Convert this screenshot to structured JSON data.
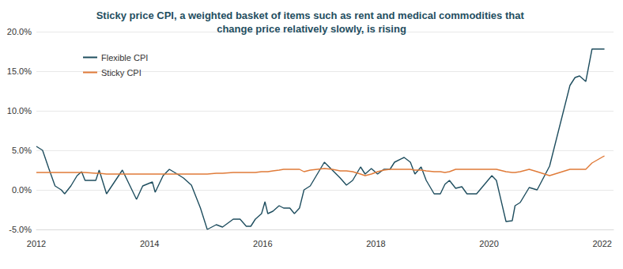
{
  "chart_data": {
    "type": "line",
    "title": "Sticky price CPI, a weighted basket of items such as rent and medical commodities that change price relatively slowly, is rising",
    "x": [
      2012.0,
      2012.11,
      2012.22,
      2012.33,
      2012.44,
      2012.5,
      2012.61,
      2012.72,
      2012.8,
      2012.86,
      2013.05,
      2013.11,
      2013.24,
      2013.52,
      2013.77,
      2013.88,
      2014.05,
      2014.1,
      2014.24,
      2014.35,
      2014.49,
      2014.6,
      2014.74,
      2014.9,
      2015.02,
      2015.18,
      2015.29,
      2015.48,
      2015.6,
      2015.71,
      2015.79,
      2015.87,
      2015.98,
      2016.04,
      2016.09,
      2016.18,
      2016.29,
      2016.37,
      2016.48,
      2016.56,
      2016.65,
      2016.73,
      2016.84,
      2017.09,
      2017.23,
      2017.37,
      2017.48,
      2017.59,
      2017.73,
      2017.81,
      2017.92,
      2018.03,
      2018.14,
      2018.25,
      2018.33,
      2018.5,
      2018.61,
      2018.69,
      2018.8,
      2018.89,
      2019.03,
      2019.14,
      2019.22,
      2019.3,
      2019.41,
      2019.52,
      2019.61,
      2019.78,
      2020.05,
      2020.13,
      2020.3,
      2020.41,
      2020.46,
      2020.55,
      2020.71,
      2020.85,
      2021.07,
      2021.43,
      2021.52,
      2021.6,
      2021.71,
      2021.82,
      2022.04
    ],
    "series": [
      {
        "name": "Flexible CPI",
        "color": "#1f4e5f",
        "values": [
          5.5,
          5.0,
          2.7,
          0.5,
          0.0,
          -0.5,
          0.5,
          1.8,
          2.3,
          1.2,
          1.2,
          2.5,
          -0.5,
          2.5,
          -1.2,
          0.5,
          1.0,
          -0.3,
          1.8,
          2.6,
          2.0,
          1.5,
          0.6,
          -2.3,
          -5.0,
          -4.4,
          -4.7,
          -3.7,
          -3.7,
          -4.6,
          -4.6,
          -3.7,
          -3.0,
          -1.5,
          -3.0,
          -2.7,
          -2.0,
          -2.3,
          -2.3,
          -3.0,
          -2.3,
          0.0,
          0.5,
          3.5,
          2.5,
          1.5,
          0.6,
          1.2,
          2.9,
          2.0,
          2.7,
          2.0,
          2.6,
          2.6,
          3.5,
          4.1,
          3.5,
          2.0,
          2.9,
          1.2,
          -0.5,
          -0.5,
          0.7,
          1.2,
          0.2,
          0.4,
          -0.5,
          -0.5,
          1.8,
          1.2,
          -4.0,
          -3.9,
          -2.0,
          -1.6,
          0.3,
          0.0,
          3.0,
          13.2,
          14.2,
          14.4,
          13.7,
          17.8,
          17.8
        ]
      },
      {
        "name": "Sticky CPI",
        "color": "#e07b39",
        "values": [
          2.2,
          2.2,
          2.2,
          2.2,
          2.2,
          2.2,
          2.2,
          2.2,
          2.2,
          2.2,
          2.1,
          2.1,
          2.0,
          2.0,
          2.0,
          2.0,
          2.0,
          2.0,
          2.0,
          2.0,
          2.0,
          2.0,
          2.0,
          2.0,
          2.0,
          2.1,
          2.1,
          2.2,
          2.2,
          2.2,
          2.2,
          2.2,
          2.3,
          2.3,
          2.3,
          2.4,
          2.5,
          2.6,
          2.6,
          2.6,
          2.6,
          2.3,
          2.5,
          2.7,
          2.6,
          2.4,
          2.4,
          2.3,
          2.0,
          1.8,
          2.0,
          2.3,
          2.5,
          2.6,
          2.6,
          2.6,
          2.6,
          2.5,
          2.5,
          2.4,
          2.3,
          2.3,
          2.2,
          2.3,
          2.6,
          2.6,
          2.6,
          2.6,
          2.6,
          2.6,
          2.3,
          2.2,
          2.2,
          2.3,
          2.6,
          2.3,
          1.8,
          2.6,
          2.6,
          2.6,
          2.6,
          3.4,
          4.3
        ]
      }
    ],
    "xlim": [
      2012,
      2022.2
    ],
    "xticks": [
      2012,
      2014,
      2016,
      2018,
      2020,
      2022
    ],
    "ylim": [
      -5,
      20
    ],
    "yticks": [
      {
        "value": -5,
        "label": "-5.0%"
      },
      {
        "value": 0,
        "label": "0.0%"
      },
      {
        "value": 5,
        "label": "5.0%"
      },
      {
        "value": 10,
        "label": "10.0%"
      },
      {
        "value": 15,
        "label": "15.0%"
      },
      {
        "value": 20,
        "label": "20.0%"
      }
    ],
    "grid": true,
    "legend": "upper left"
  }
}
